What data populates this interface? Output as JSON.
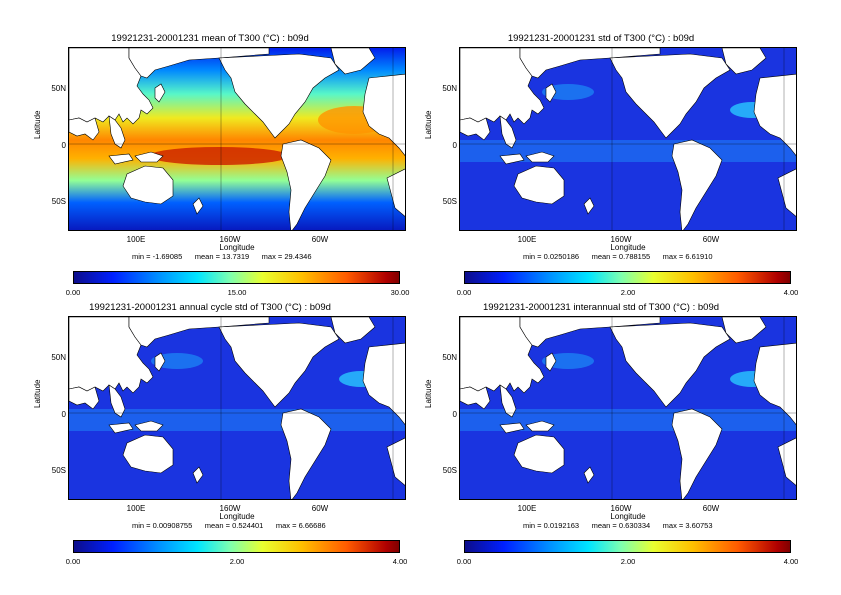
{
  "axis": {
    "ylabel": "Latitude",
    "xlabel": "Longitude",
    "lat_ticks": [
      "50N",
      "0",
      "50S"
    ],
    "lon_ticks": [
      "100E",
      "160W",
      "60W"
    ]
  },
  "panels": [
    {
      "title": "19921231-20001231 mean of T300 (°C) : b09d",
      "stats": "min = -1.69085      mean = 13.7319      max = 29.4346",
      "cbar_ticks": [
        "0.00",
        "15.00",
        "30.00"
      ],
      "field": "mean"
    },
    {
      "title": "19921231-20001231 std of T300 (°C) : b09d",
      "stats": "min = 0.0250186      mean = 0.788155      max = 6.61910",
      "cbar_ticks": [
        "0.00",
        "2.00",
        "4.00"
      ],
      "field": "std"
    },
    {
      "title": "19921231-20001231 annual cycle std of T300 (°C) : b09d",
      "stats": "min = 0.00908755      mean = 0.524401      max = 6.66686",
      "cbar_ticks": [
        "0.00",
        "2.00",
        "4.00"
      ],
      "field": "std"
    },
    {
      "title": "19921231-20001231 interannual std of T300 (°C) : b09d",
      "stats": "min = 0.0192163      mean = 0.630334      max = 3.60753",
      "cbar_ticks": [
        "0.00",
        "2.00",
        "4.00"
      ],
      "field": "std"
    }
  ]
}
